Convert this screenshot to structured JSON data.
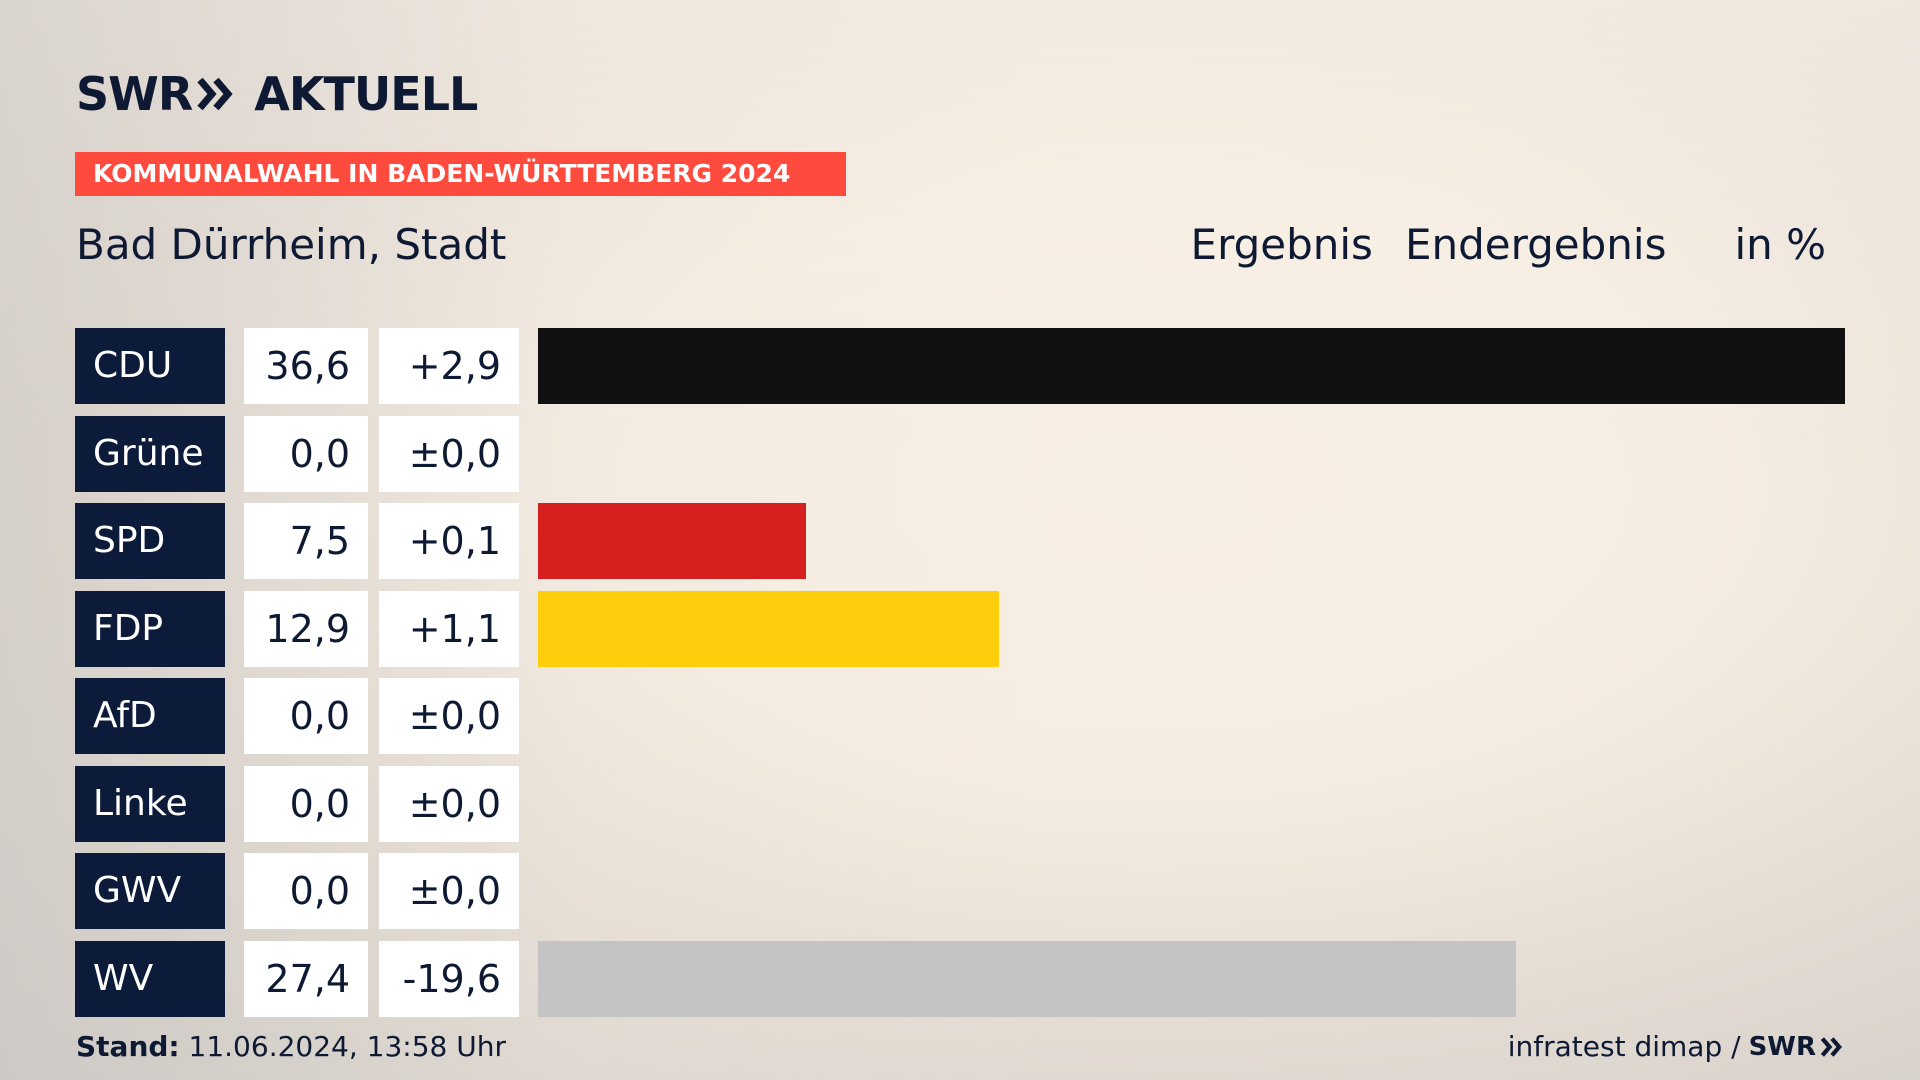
{
  "brand": {
    "logo_text": "SWR",
    "logo_product": "AKTUELL",
    "footer_source": "infratest dimap /",
    "footer_logo": "SWR"
  },
  "banner": "KOMMUNALWAHL IN BADEN-WÜRTTEMBERG 2024",
  "region": "Bad Dürrheim, Stadt",
  "headers": {
    "result": "Ergebnis",
    "status": "Endergebnis",
    "unit": "in %"
  },
  "stand": {
    "label": "Stand:",
    "value": "11.06.2024, 13:58 Uhr"
  },
  "colors": {
    "accent": "#ff4b3e",
    "party_box": "#0c1b3a"
  },
  "chart_data": {
    "type": "bar",
    "orientation": "horizontal",
    "xlim": [
      0,
      36.6
    ],
    "categories": [
      "CDU",
      "Grüne",
      "SPD",
      "FDP",
      "AfD",
      "Linke",
      "GWV",
      "WV"
    ],
    "series": [
      {
        "values": [
          36.6,
          0.0,
          7.5,
          12.9,
          0.0,
          0.0,
          0.0,
          27.4
        ],
        "value_labels": [
          "36,6",
          "0,0",
          "7,5",
          "12,9",
          "0,0",
          "0,0",
          "0,0",
          "27,4"
        ],
        "diff_labels": [
          "+2,9",
          "±0,0",
          "+0,1",
          "+1,1",
          "±0,0",
          "±0,0",
          "±0,0",
          "-19,6"
        ],
        "colors": [
          "#111111",
          "#1fa12d",
          "#d62020",
          "#fecd0c",
          "#00a2de",
          "#be3075",
          "#9e9e9e",
          "#c4c4c4"
        ]
      }
    ]
  }
}
